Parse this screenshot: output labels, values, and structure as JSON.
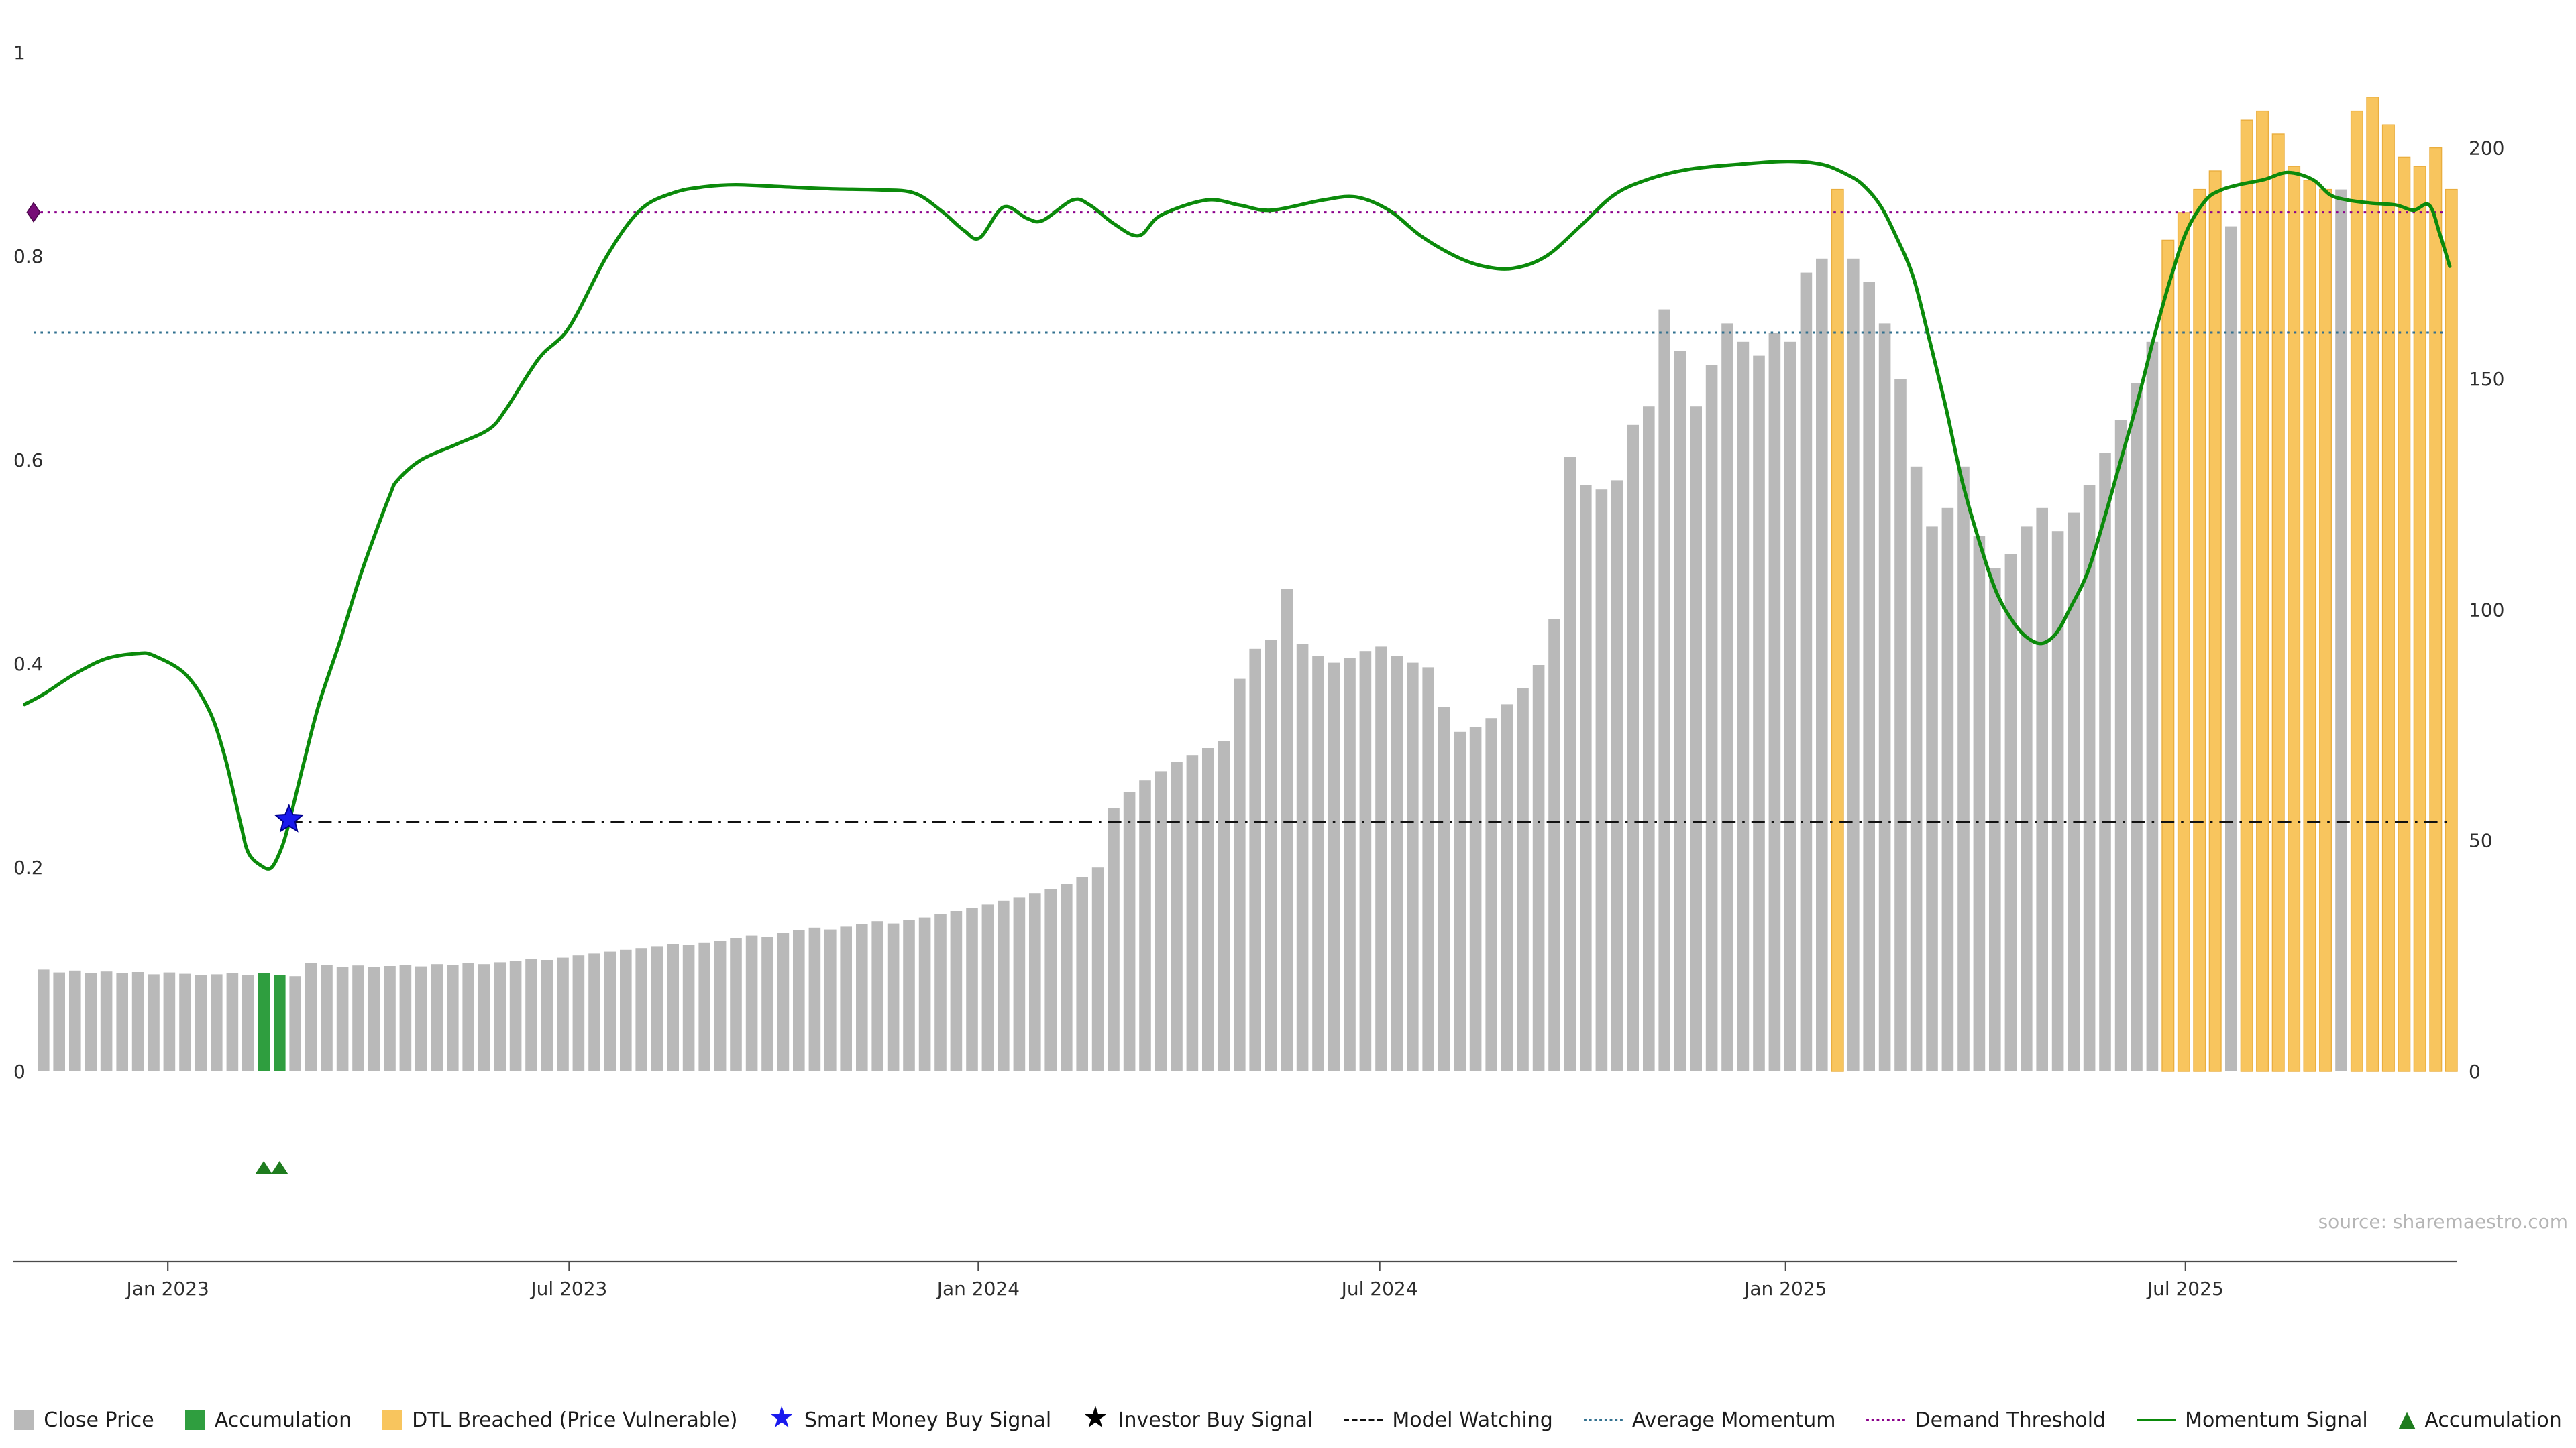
{
  "source": "source: sharemaestro.com",
  "colors": {
    "close_price": "#b9b9b9",
    "accumulation_bar": "#2f9e3f",
    "dtl_bar": "#f8c55e",
    "dtl_bar_edge": "#eaae3e",
    "momentum": "#0b8a0b",
    "average_momentum": "#31708f",
    "demand_threshold": "#8b008b",
    "model_watching": "#111111",
    "buy_star": "#1a1aee",
    "buy_star_edge": "#00008b",
    "investor_star": "#000000",
    "diamond": "#770c77",
    "triangle": "#1e7c1e",
    "axis_line": "#4a4a4a",
    "axis_text": "#2e2e2e",
    "source_text": "#b5b5b5"
  },
  "chart_data": {
    "type": "bar+line",
    "title": "",
    "xlabel": "",
    "ylabel_left": "",
    "ylabel_right": "",
    "grid": false,
    "legend_position": "bottom-center",
    "x_ticks": [
      {
        "label": "Jan 2023",
        "pos": 7.9
      },
      {
        "label": "Jul 2023",
        "pos": 33.4
      },
      {
        "label": "Jan 2024",
        "pos": 59.4
      },
      {
        "label": "Jul 2024",
        "pos": 84.9
      },
      {
        "label": "Jan 2025",
        "pos": 110.7
      },
      {
        "label": "Jul 2025",
        "pos": 136.1
      }
    ],
    "left_axis": {
      "range": [
        0,
        1
      ],
      "ticks": [
        {
          "label": "0",
          "value": 0
        },
        {
          "label": "0.2",
          "value": 0.2
        },
        {
          "label": "0.4",
          "value": 0.4
        },
        {
          "label": "0.6",
          "value": 0.6
        },
        {
          "label": "0.8",
          "value": 0.8
        },
        {
          "label": "1",
          "value": 1
        }
      ]
    },
    "right_axis": {
      "range": [
        0,
        220.7
      ],
      "ticks": [
        {
          "label": "0",
          "value": 0
        },
        {
          "label": "50",
          "value": 50
        },
        {
          "label": "100",
          "value": 100
        },
        {
          "label": "150",
          "value": 150
        },
        {
          "label": "200",
          "value": 200
        }
      ]
    },
    "bars": {
      "series_name": "Close Price",
      "axis": "right",
      "values": [
        22,
        21.4,
        21.8,
        21.3,
        21.6,
        21.2,
        21.5,
        21,
        21.4,
        21.1,
        20.8,
        21,
        21.3,
        20.9,
        21.2,
        20.9,
        20.6,
        23.4,
        23,
        22.6,
        22.9,
        22.5,
        22.8,
        23.1,
        22.7,
        23.2,
        23,
        23.4,
        23.2,
        23.6,
        23.9,
        24.3,
        24.1,
        24.6,
        25.1,
        25.5,
        25.9,
        26.3,
        26.7,
        27.1,
        27.6,
        27.3,
        27.9,
        28.3,
        28.9,
        29.4,
        29.1,
        29.9,
        30.5,
        31.1,
        30.7,
        31.3,
        31.9,
        32.5,
        32,
        32.7,
        33.3,
        34.1,
        34.7,
        35.3,
        36.1,
        36.9,
        37.7,
        38.6,
        39.5,
        40.6,
        42.1,
        44.1,
        57,
        60.5,
        63,
        65,
        67,
        68.5,
        70,
        71.5,
        85,
        91.5,
        93.5,
        104.5,
        92.5,
        90,
        88.5,
        89.5,
        91,
        92,
        90,
        88.5,
        87.5,
        79,
        73.5,
        74.5,
        76.5,
        79.5,
        83,
        88,
        98,
        133,
        127,
        126,
        128,
        140,
        144,
        165,
        156,
        144,
        153,
        162,
        158,
        155,
        160,
        158,
        173,
        176,
        191,
        176,
        171,
        162,
        150,
        131,
        118,
        122,
        131,
        116,
        109,
        112,
        118,
        122,
        117,
        121,
        127,
        134,
        141,
        149,
        158,
        180,
        186,
        191,
        195,
        183,
        206,
        208,
        203,
        196,
        193,
        191,
        191,
        208,
        211,
        205,
        198,
        196,
        200,
        191
      ],
      "accumulation_indices": [
        14,
        15
      ],
      "dtl_indices": [
        114,
        135,
        136,
        137,
        138,
        140,
        141,
        142,
        143,
        144,
        145,
        147,
        148,
        149,
        150,
        151,
        152,
        153
      ]
    },
    "momentum": {
      "series_name": "Momentum Signal",
      "axis": "left",
      "points": [
        [
          -1.2,
          0.36
        ],
        [
          0,
          0.37
        ],
        [
          2,
          0.39
        ],
        [
          4,
          0.405
        ],
        [
          6,
          0.41
        ],
        [
          7,
          0.408
        ],
        [
          9,
          0.39
        ],
        [
          10.5,
          0.355
        ],
        [
          11.5,
          0.31
        ],
        [
          12.5,
          0.245
        ],
        [
          13,
          0.215
        ],
        [
          13.8,
          0.202
        ],
        [
          14.5,
          0.2
        ],
        [
          15.2,
          0.222
        ],
        [
          15.7,
          0.25
        ],
        [
          16.5,
          0.3
        ],
        [
          17.5,
          0.36
        ],
        [
          18.8,
          0.42
        ],
        [
          20,
          0.48
        ],
        [
          20.9,
          0.52
        ],
        [
          22,
          0.565
        ],
        [
          22.5,
          0.58
        ],
        [
          24,
          0.6
        ],
        [
          26.2,
          0.615
        ],
        [
          28.3,
          0.63
        ],
        [
          29.4,
          0.65
        ],
        [
          31.5,
          0.7
        ],
        [
          33.4,
          0.73
        ],
        [
          35.8,
          0.8
        ],
        [
          37.9,
          0.845
        ],
        [
          40,
          0.862
        ],
        [
          42,
          0.868
        ],
        [
          44,
          0.87
        ],
        [
          47,
          0.868
        ],
        [
          50,
          0.866
        ],
        [
          53,
          0.865
        ],
        [
          55.3,
          0.862
        ],
        [
          57,
          0.845
        ],
        [
          58.5,
          0.825
        ],
        [
          59.5,
          0.818
        ],
        [
          61,
          0.848
        ],
        [
          62.5,
          0.837
        ],
        [
          63.5,
          0.835
        ],
        [
          65.4,
          0.855
        ],
        [
          66.5,
          0.85
        ],
        [
          68,
          0.832
        ],
        [
          69.6,
          0.82
        ],
        [
          71,
          0.84
        ],
        [
          73.9,
          0.855
        ],
        [
          76,
          0.85
        ],
        [
          78,
          0.845
        ],
        [
          81.3,
          0.855
        ],
        [
          83.4,
          0.858
        ],
        [
          85.5,
          0.845
        ],
        [
          87.5,
          0.82
        ],
        [
          89.7,
          0.8
        ],
        [
          91.5,
          0.79
        ],
        [
          93.4,
          0.788
        ],
        [
          95.5,
          0.8
        ],
        [
          97.7,
          0.83
        ],
        [
          99.8,
          0.86
        ],
        [
          101.9,
          0.875
        ],
        [
          104.5,
          0.885
        ],
        [
          107.7,
          0.89
        ],
        [
          110.8,
          0.893
        ],
        [
          113,
          0.89
        ],
        [
          114.6,
          0.88
        ],
        [
          115.6,
          0.87
        ],
        [
          116.7,
          0.85
        ],
        [
          117.7,
          0.82
        ],
        [
          118.8,
          0.78
        ],
        [
          119.8,
          0.72
        ],
        [
          120.9,
          0.65
        ],
        [
          121.9,
          0.58
        ],
        [
          123,
          0.52
        ],
        [
          124.1,
          0.47
        ],
        [
          125.2,
          0.44
        ],
        [
          126.1,
          0.425
        ],
        [
          127,
          0.42
        ],
        [
          127.9,
          0.43
        ],
        [
          128.8,
          0.455
        ],
        [
          129.9,
          0.49
        ],
        [
          131,
          0.545
        ],
        [
          132,
          0.6
        ],
        [
          133.1,
          0.66
        ],
        [
          134.1,
          0.72
        ],
        [
          135.2,
          0.78
        ],
        [
          136.2,
          0.825
        ],
        [
          137.4,
          0.855
        ],
        [
          138.4,
          0.865
        ],
        [
          139.5,
          0.87
        ],
        [
          141.1,
          0.875
        ],
        [
          142.6,
          0.882
        ],
        [
          144.2,
          0.875
        ],
        [
          145.3,
          0.86
        ],
        [
          146.4,
          0.855
        ],
        [
          147.9,
          0.852
        ],
        [
          149.5,
          0.85
        ],
        [
          150.6,
          0.845
        ],
        [
          151.6,
          0.85
        ],
        [
          152.3,
          0.82
        ],
        [
          152.9,
          0.79
        ]
      ]
    },
    "lines": {
      "demand_threshold": 0.843,
      "average_momentum": 0.725,
      "model_watching": 0.245,
      "model_watching_start_bar": 15.6
    },
    "markers": {
      "smart_money_buy_signal": {
        "bar": 15.6,
        "value": 0.247
      },
      "demand_threshold_diamond": {
        "value": 0.843
      },
      "accumulation_marker_bars": [
        14,
        15
      ]
    }
  },
  "legend": [
    {
      "type": "square",
      "color_key": "close_price",
      "icon": "close-price-swatch",
      "label": "Close Price"
    },
    {
      "type": "square",
      "color_key": "accumulation_bar",
      "icon": "accumulation-swatch",
      "label": "Accumulation"
    },
    {
      "type": "square",
      "color_key": "dtl_bar",
      "icon": "dtl-breached-swatch",
      "label": "DTL Breached (Price Vulnerable)"
    },
    {
      "type": "star",
      "color_key": "buy_star",
      "icon": "smart-money-star-icon",
      "label": "Smart Money Buy Signal"
    },
    {
      "type": "star",
      "color_key": "investor_star",
      "icon": "investor-star-icon",
      "label": "Investor Buy Signal"
    },
    {
      "type": "dashed",
      "color_key": "model_watching",
      "icon": "model-watching-line-icon",
      "label": "Model Watching"
    },
    {
      "type": "dotted",
      "color_key": "average_momentum",
      "icon": "average-momentum-line-icon",
      "label": "Average Momentum"
    },
    {
      "type": "dotted",
      "color_key": "demand_threshold",
      "icon": "demand-threshold-line-icon",
      "label": "Demand Threshold"
    },
    {
      "type": "line",
      "color_key": "momentum",
      "icon": "momentum-line-icon",
      "label": "Momentum Signal"
    },
    {
      "type": "triangle",
      "color_key": "triangle",
      "icon": "accumulation-triangle-icon",
      "label": "Accumulation"
    }
  ]
}
